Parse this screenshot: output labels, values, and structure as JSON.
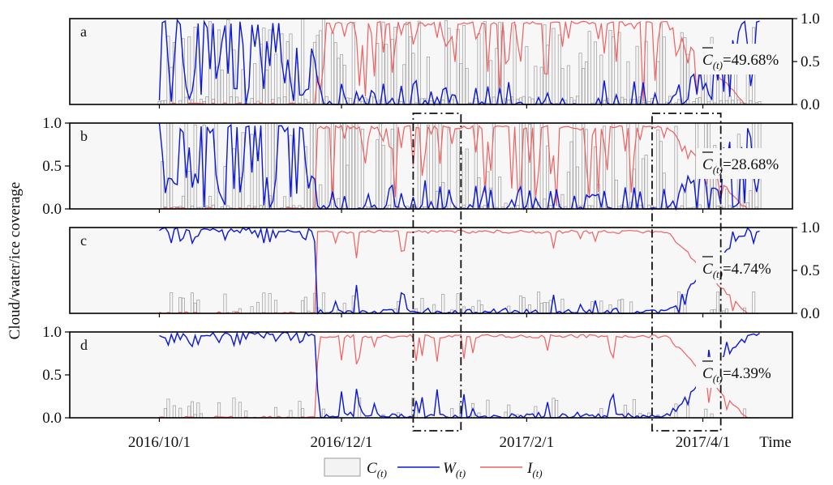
{
  "chart_data": {
    "type": "bar+line",
    "ylabel": "Cloud/water/ice coverage",
    "xlabel": "Time",
    "x_ticks": [
      "2016/10/1",
      "2016/12/1",
      "2017/2/1",
      "2017/4/1"
    ],
    "ylim": [
      0,
      1
    ],
    "y_ticks": [
      "0.0",
      "0.5",
      "1.0"
    ],
    "legend": [
      {
        "symbol": "C",
        "subscript": "(t)",
        "kind": "bar",
        "color": "#9a9a9a"
      },
      {
        "symbol": "W",
        "subscript": "(t)",
        "kind": "line",
        "color": "#0a17d6"
      },
      {
        "symbol": "I",
        "subscript": "(t)",
        "kind": "line",
        "color": "#f06060"
      }
    ],
    "panels": [
      {
        "letter": "a",
        "mean_symbol": "C",
        "mean_subscript": "(t)",
        "mean_value": "=49.68%",
        "cloud_mean": 0.4968,
        "tick_side": "right"
      },
      {
        "letter": "b",
        "mean_symbol": "C",
        "mean_subscript": "(t)",
        "mean_value": "=28.68%",
        "cloud_mean": 0.2868,
        "tick_side": "left"
      },
      {
        "letter": "c",
        "mean_symbol": "C",
        "mean_subscript": "(t)",
        "mean_value": "=4.74%",
        "cloud_mean": 0.0474,
        "tick_side": "right"
      },
      {
        "letter": "d",
        "mean_symbol": "C",
        "mean_subscript": "(t)",
        "mean_value": "=4.39%",
        "cloud_mean": 0.0439,
        "tick_side": "left"
      }
    ],
    "date_range": [
      "2016/10/1",
      "2017/4/20"
    ],
    "highlight_windows": [
      {
        "start": "2016/12/25",
        "end": "2017/1/10"
      },
      {
        "start": "2017/3/15",
        "end": "2017/4/7"
      }
    ],
    "colors": {
      "cloud": "#9a9a9a",
      "water": "#0a17d6",
      "ice": "#f06060",
      "panel_bg": "#f7f7f7",
      "border": "#000000"
    }
  }
}
